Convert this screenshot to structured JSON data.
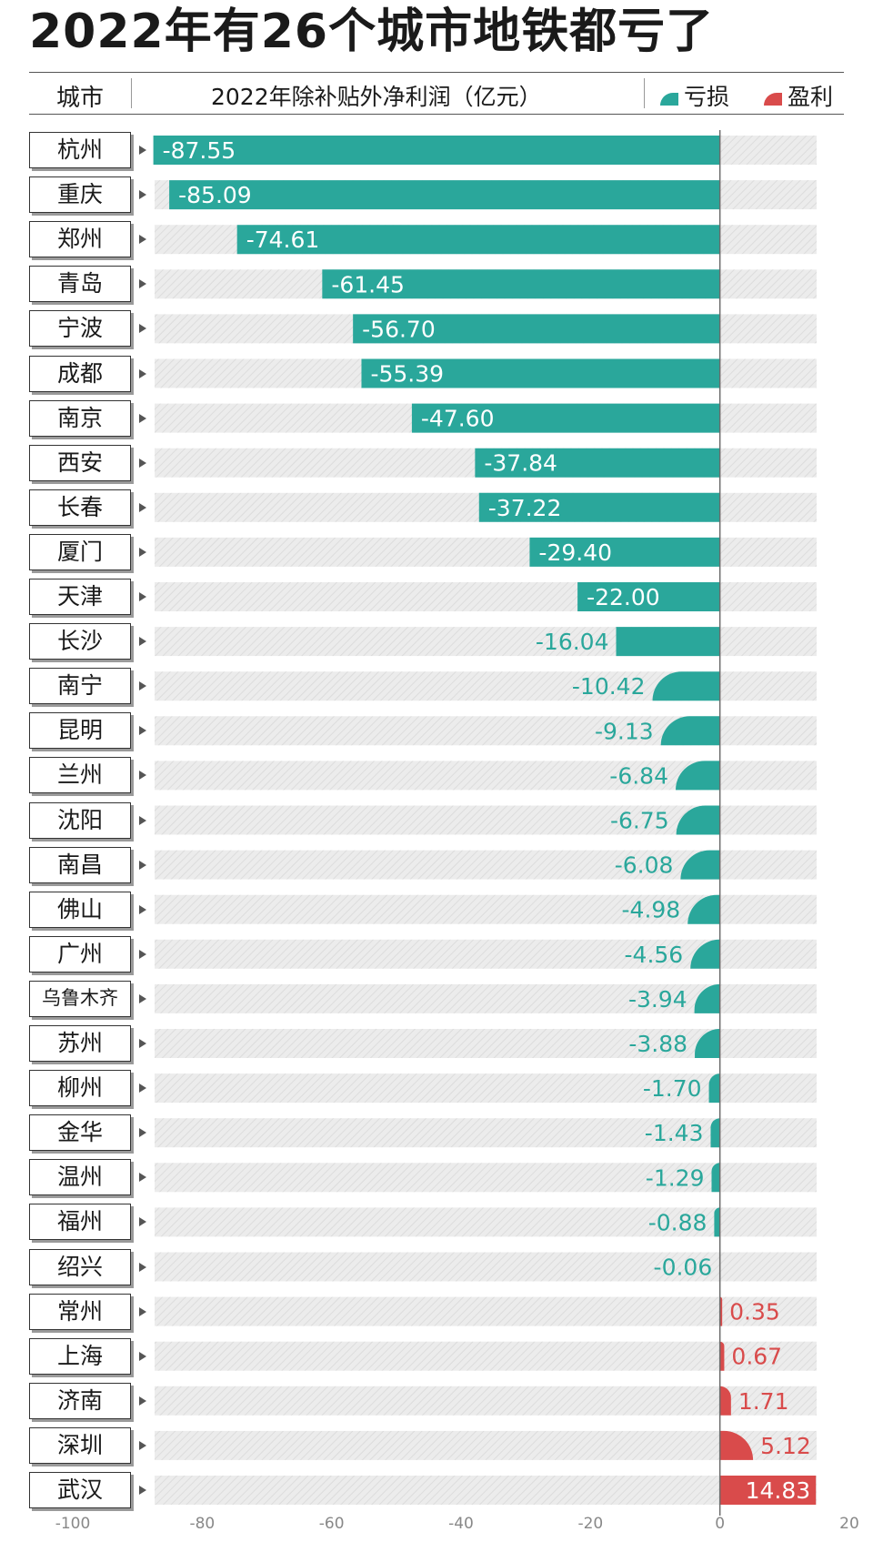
{
  "title": "2022年有26个城市地铁都亏了",
  "header": {
    "city_label": "城市",
    "metric_label": "2022年除补贴外净利润（亿元）",
    "legend_loss": "亏损",
    "legend_profit": "盈利"
  },
  "colors": {
    "loss": "#2aa79b",
    "profit": "#d94b4b",
    "track": "#e6e6e6"
  },
  "chart_data": {
    "type": "bar",
    "orientation": "horizontal",
    "title": "2022年有26个城市地铁都亏了",
    "xlabel": "2022年除补贴外净利润（亿元）",
    "xlim": [
      -100,
      20
    ],
    "x_ticks": [
      "-100",
      "-80",
      "-60",
      "-40",
      "-20",
      "0",
      "20"
    ],
    "grid": false,
    "legend": [
      "亏损",
      "盈利"
    ],
    "legend_position": "top-right",
    "categories": [
      "杭州",
      "重庆",
      "郑州",
      "青岛",
      "宁波",
      "成都",
      "南京",
      "西安",
      "长春",
      "厦门",
      "天津",
      "长沙",
      "南宁",
      "昆明",
      "兰州",
      "沈阳",
      "南昌",
      "佛山",
      "广州",
      "乌鲁木齐",
      "苏州",
      "柳州",
      "金华",
      "温州",
      "福州",
      "绍兴",
      "常州",
      "上海",
      "济南",
      "深圳",
      "武汉"
    ],
    "values": [
      -87.55,
      -85.09,
      -74.61,
      -61.45,
      -56.7,
      -55.39,
      -47.6,
      -37.84,
      -37.22,
      -29.4,
      -22.0,
      -16.04,
      -10.42,
      -9.13,
      -6.84,
      -6.75,
      -6.08,
      -4.98,
      -4.56,
      -3.94,
      -3.88,
      -1.7,
      -1.43,
      -1.29,
      -0.88,
      -0.06,
      0.35,
      0.67,
      1.71,
      5.12,
      14.83
    ],
    "value_labels": [
      "-87.55",
      "-85.09",
      "-74.61",
      "-61.45",
      "-56.70",
      "-55.39",
      "-47.60",
      "-37.84",
      "-37.22",
      "-29.40",
      "-22.00",
      "-16.04",
      "-10.42",
      "-9.13",
      "-6.84",
      "-6.75",
      "-6.08",
      "-4.98",
      "-4.56",
      "-3.94",
      "-3.88",
      "-1.70",
      "-1.43",
      "-1.29",
      "-0.88",
      "-0.06",
      "0.35",
      "0.67",
      "1.71",
      "5.12",
      "14.83"
    ]
  }
}
